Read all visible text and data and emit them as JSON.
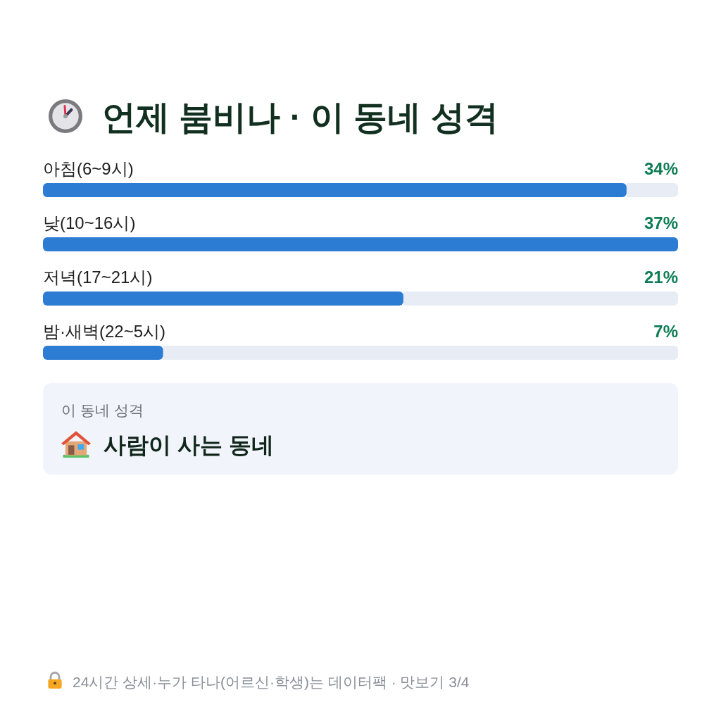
{
  "chart_data": {
    "type": "bar",
    "orientation": "horizontal",
    "title": "언제 붐비나 · 이 동네 성격",
    "categories": [
      "아침(6~9시)",
      "낮(10~16시)",
      "저녁(17~21시)",
      "밤·새벽(22~5시)"
    ],
    "values": [
      34,
      37,
      21,
      7
    ],
    "color": "#2d7cd4",
    "value_labels": [
      "34%",
      "37%",
      "21%",
      "7%"
    ],
    "annotations": [
      "이 동네 성격",
      "사람이 사는 동네",
      "24시간 상세·누가 타나(어르신·학생)는 데이터팩 · 맛보기 3/4"
    ]
  }
}
